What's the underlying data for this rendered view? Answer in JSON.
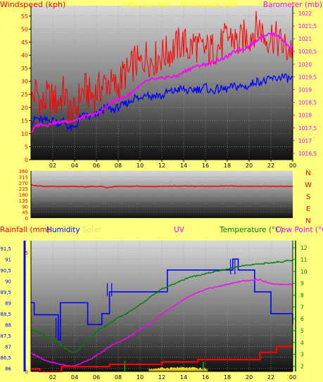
{
  "colors": {
    "background": "#ffff80",
    "wind_gust": "#ff0000",
    "wind_avg": "#0000ff",
    "barometer": "#ff00ff",
    "wind_dir": "#ff0000",
    "rainfall": "#ff0000",
    "humidity": "#0000ff",
    "solar": "#ffff00",
    "uv": "#ff00ff",
    "temperature": "#008000",
    "dew_point": "#ff00ff"
  },
  "header": {
    "date": "3 May year date ... 10 Forecastle 2008"
  },
  "chart_data": [
    {
      "type": "line",
      "title": "",
      "xlabel": "",
      "x_ticks": [
        "02",
        "04",
        "06",
        "08",
        "10",
        "12",
        "14",
        "16",
        "18",
        "20",
        "22",
        "00"
      ],
      "y_left_label": "Windspeed (kph)",
      "y_left_ticks": [
        "0",
        "5",
        "10",
        "15",
        "20",
        "25",
        "30",
        "35",
        "40",
        "45",
        "50",
        "55"
      ],
      "y_left_range": [
        0,
        59
      ],
      "y_right_label": "Barometer (mb)",
      "y_right_ticks": [
        "1016,5",
        "1017",
        "1017,5",
        "1018",
        "1018,5",
        "1019",
        "1019,5",
        "1020",
        "1020,5",
        "1021",
        "1021,5",
        "1022"
      ],
      "y_right_range": [
        1016.25,
        1022.3
      ],
      "x_hours": [
        0,
        0.5,
        1,
        1.5,
        2,
        2.5,
        3,
        3.5,
        4,
        4.5,
        5,
        5.5,
        6,
        6.5,
        7,
        7.5,
        8,
        8.5,
        9,
        9.5,
        10,
        10.5,
        11,
        11.5,
        12,
        12.5,
        13,
        13.5,
        14,
        14.5,
        15,
        15.5,
        16,
        16.5,
        17,
        17.5,
        18,
        18.5,
        19,
        19.5,
        20,
        20.5,
        21,
        21.5,
        22,
        22.5,
        23,
        23.5,
        24
      ],
      "series": [
        {
          "name": "Wind gust",
          "axis": "left",
          "values": [
            22,
            27,
            20,
            24,
            23,
            22,
            26,
            19,
            17,
            25,
            27,
            24,
            26,
            28,
            30,
            28,
            28,
            33,
            33,
            38,
            36,
            40,
            38,
            39,
            40,
            41,
            42,
            44,
            45,
            42,
            45,
            42,
            42,
            42,
            43,
            44,
            47,
            47,
            44,
            47,
            47,
            50,
            51,
            46,
            48,
            46,
            44,
            42,
            43
          ]
        },
        {
          "name": "Wind average",
          "axis": "left",
          "values": [
            14,
            16,
            15,
            15,
            15,
            14,
            15,
            12,
            12,
            16,
            17,
            16,
            17,
            19,
            20,
            19,
            20,
            21,
            22,
            24,
            23,
            26,
            24,
            25,
            24,
            26,
            26,
            27,
            27,
            26,
            27,
            27,
            28,
            26,
            27,
            27,
            27,
            28,
            28,
            28,
            28,
            30,
            30,
            30,
            31,
            31,
            32,
            31,
            31
          ]
        },
        {
          "name": "Barometer",
          "axis": "right",
          "values": [
            1017.3,
            1017.6,
            1017.65,
            1017.6,
            1017.7,
            1017.7,
            1017.75,
            1017.75,
            1017.8,
            1017.85,
            1017.95,
            1018.0,
            1018.05,
            1018.2,
            1018.35,
            1018.55,
            1018.65,
            1018.7,
            1018.8,
            1019.0,
            1019.15,
            1019.3,
            1019.4,
            1019.4,
            1019.45,
            1019.5,
            1019.5,
            1019.55,
            1019.7,
            1019.8,
            1019.9,
            1019.95,
            1020.0,
            1020.05,
            1020.15,
            1020.2,
            1020.3,
            1020.45,
            1020.55,
            1020.6,
            1020.7,
            1020.85,
            1021.05,
            1021.15,
            1021.2,
            1021.15,
            1021.0,
            1020.75,
            1020.6
          ]
        }
      ]
    },
    {
      "type": "line",
      "title": "",
      "y_left_ticks": [
        "0",
        "45",
        "90",
        "135",
        "180",
        "225",
        "270",
        "315",
        "360"
      ],
      "y_left_range": [
        0,
        360
      ],
      "y_right_ticks": [
        "N",
        "W",
        "S",
        "E",
        "N"
      ],
      "series": [
        {
          "name": "Wind direction",
          "values": [
            255,
            247,
            244,
            240,
            243,
            240,
            241,
            242,
            243,
            240,
            238,
            242,
            240,
            244,
            230,
            241,
            242,
            243,
            240,
            244,
            243,
            241,
            240,
            241,
            243,
            244,
            244,
            243,
            244,
            244,
            243,
            243,
            243,
            242,
            243,
            244,
            245,
            244,
            243,
            243,
            243,
            242,
            243,
            244,
            243,
            242,
            243,
            242,
            241
          ]
        }
      ]
    },
    {
      "type": "line",
      "title": "",
      "x_ticks": [
        "02",
        "04",
        "06",
        "08",
        "10",
        "12",
        "14",
        "16",
        "18",
        "20",
        "22",
        "00"
      ],
      "y_left_label": "Rainfall (mm)",
      "y_left_ticks": [
        "0",
        "5"
      ],
      "y_left_range": [
        0,
        5.5
      ],
      "y_humidity_label": "Humidity",
      "y_humidity_ticks": [
        "86",
        "86,5",
        "87",
        "87,5",
        "88",
        "88,5",
        "89",
        "89,5",
        "90",
        "90,5",
        "91",
        "91,5"
      ],
      "y_humidity_range": [
        85.85,
        91.85
      ],
      "solar_label": "Solar",
      "uv_label": "UV",
      "y_right_label": "Temperature (°C)",
      "y_right_ticks": [
        "2",
        "3",
        "4",
        "5",
        "6",
        "7",
        "8",
        "9",
        "10",
        "11",
        "12"
      ],
      "y_right_range": [
        1.55,
        12.6
      ],
      "dew_point_label": "Dew Point (°C)",
      "series": [
        {
          "name": "Humidity",
          "axis": "humidity",
          "step_points": [
            [
              0,
              89
            ],
            [
              0.3,
              88.45
            ],
            [
              2.5,
              87.3
            ],
            [
              2.7,
              89
            ],
            [
              5.2,
              88
            ],
            [
              6.5,
              88.5
            ],
            [
              7.2,
              89.5
            ],
            [
              12.5,
              90.5
            ],
            [
              18.5,
              91
            ],
            [
              19,
              90.5
            ],
            [
              20.5,
              89.5
            ],
            [
              22,
              88.5
            ],
            [
              24,
              88
            ]
          ]
        },
        {
          "name": "Temperature",
          "axis": "right",
          "values": [
            5.1,
            4.9,
            4.7,
            4.4,
            4.2,
            4.0,
            3.6,
            3.3,
            3.1,
            3.5,
            4.0,
            4.4,
            4.9,
            5.2,
            5.5,
            5.8,
            6.1,
            6.3,
            6.6,
            6.9,
            7.2,
            7.5,
            7.9,
            8.2,
            8.5,
            8.7,
            8.9,
            9.1,
            9.3,
            9.5,
            9.6,
            9.7,
            9.8,
            9.9,
            10.0,
            10.1,
            10.2,
            10.3,
            10.4,
            10.5,
            10.5,
            10.6,
            10.6,
            10.7,
            10.7,
            10.8,
            10.8,
            10.9,
            10.9
          ]
        },
        {
          "name": "Dew Point",
          "axis": "right",
          "values": [
            3.1,
            2.9,
            2.6,
            2.4,
            2.3,
            2.2,
            2.1,
            2.0,
            2.0,
            2.2,
            2.4,
            2.6,
            2.9,
            3.2,
            3.5,
            3.8,
            4.0,
            4.2,
            4.5,
            4.8,
            5.1,
            5.4,
            5.7,
            6.0,
            6.4,
            6.7,
            7.0,
            7.3,
            7.6,
            7.9,
            8.1,
            8.3,
            8.5,
            8.6,
            8.7,
            8.8,
            8.9,
            9.0,
            9.1,
            9.2,
            9.2,
            9.3,
            9.3,
            9.1,
            9.0,
            8.9,
            8.9,
            8.9,
            8.9
          ]
        },
        {
          "name": "Rainfall",
          "axis": "left",
          "step_points": [
            [
              0,
              0.1
            ],
            [
              0.8,
              0
            ],
            [
              2.8,
              0.2
            ],
            [
              7.2,
              0.3
            ],
            [
              12,
              0.4
            ],
            [
              15.3,
              0.5
            ],
            [
              21,
              0.8
            ],
            [
              22.5,
              1.05
            ],
            [
              24,
              1.05
            ]
          ]
        }
      ]
    }
  ]
}
